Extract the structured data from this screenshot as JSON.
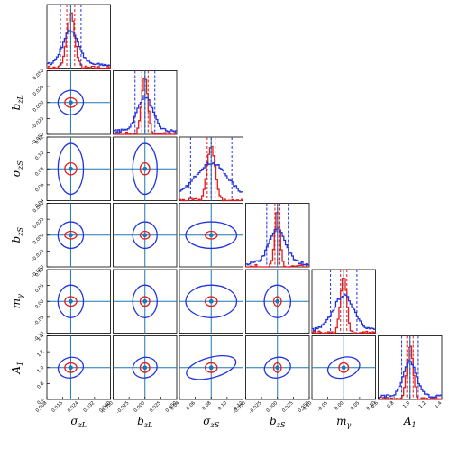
{
  "chart_data": {
    "type": "corner",
    "parameters": [
      {
        "name": "σzL",
        "label_main": "σ",
        "label_sub": "zL",
        "range": [
          0.008,
          0.04
        ],
        "ticks": [
          "0.008",
          "0.016",
          "0.024",
          "0.032",
          "0.040"
        ],
        "true_value": 0.02
      },
      {
        "name": "bzL",
        "label_main": "b",
        "label_sub": "zL",
        "range": [
          -0.05,
          0.05
        ],
        "ticks": [
          "-0.050",
          "-0.025",
          "0.000",
          "0.025",
          "0.050"
        ],
        "true_value": 0.0
      },
      {
        "name": "σzS",
        "label_main": "σ",
        "label_sub": "zS",
        "range": [
          0.04,
          0.12
        ],
        "ticks": [
          "0.04",
          "0.06",
          "0.08",
          "0.10",
          "0.12"
        ],
        "true_value": 0.08
      },
      {
        "name": "bzS",
        "label_main": "b",
        "label_sub": "zS",
        "range": [
          -0.05,
          0.05
        ],
        "ticks": [
          "-0.050",
          "-0.025",
          "0.000",
          "0.025",
          "0.050"
        ],
        "true_value": 0.0
      },
      {
        "name": "mγ",
        "label_main": "m",
        "label_sub": "γ",
        "range": [
          -0.1,
          0.1
        ],
        "ticks": [
          "-0.10",
          "-0.05",
          "0.00",
          "0.05",
          "0.10"
        ],
        "true_value": 0.0
      },
      {
        "name": "A1",
        "label_main": "A",
        "label_sub": "1",
        "range": [
          0.6,
          1.4
        ],
        "ticks": [
          "0.6",
          "0.8",
          "1.0",
          "1.2",
          "1.4"
        ],
        "true_value": 1.0
      }
    ],
    "series": [
      {
        "name": "",
        "color": "#e31a1c",
        "means": [
          0.02,
          0.0,
          0.08,
          0.0,
          0.0,
          1.0
        ],
        "sigmas": [
          0.002,
          0.005,
          0.005,
          0.004,
          0.01,
          0.04
        ],
        "contour_scale": [
          1.5,
          1.5,
          1.5,
          1.5,
          1.5,
          1.5
        ]
      },
      {
        "name": "",
        "color": "#2233dd",
        "means": [
          0.02,
          0.0,
          0.08,
          0.0,
          0.0,
          1.0
        ],
        "sigmas": [
          0.004,
          0.012,
          0.02,
          0.013,
          0.032,
          0.08
        ],
        "contour_scale": [
          1.6,
          1.6,
          1.6,
          1.6,
          1.6,
          1.6
        ]
      }
    ],
    "marker_color": "#1f77b4",
    "grid": false,
    "legend": "none"
  }
}
